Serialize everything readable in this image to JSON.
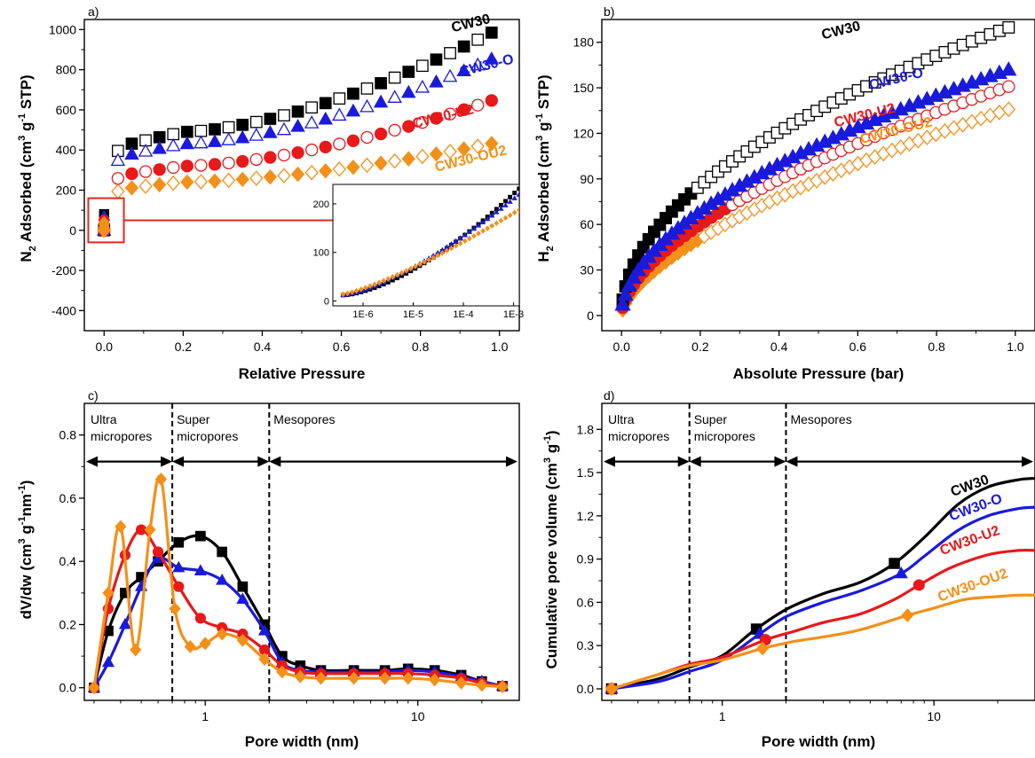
{
  "colors": {
    "CW30": "#000000",
    "CW30-O": "#1a1adc",
    "CW30-U2": "#e8191b",
    "CW30-OU2": "#f39019",
    "arrow": "#e32822"
  },
  "icons": {
    "CW30": "square",
    "CW30-O": "triangle-up",
    "CW30-U2": "circle",
    "CW30-OU2": "diamond"
  },
  "chart_data": [
    {
      "id": "a",
      "panel_label": "a)",
      "type": "scatter",
      "xlabel": "Relative Pressure",
      "ylabel_main": "N",
      "ylabel_sub": "2",
      "ylabel_rest1": " Adsorbed (cm",
      "ylabel_sup1": "3",
      "ylabel_rest2": " g",
      "ylabel_sup2": "-1",
      "ylabel_rest3": " STP)",
      "xlim": [
        -0.05,
        1.05
      ],
      "ylim": [
        -500,
        1050
      ],
      "xticks": [
        0.0,
        0.2,
        0.4,
        0.6,
        0.8,
        1.0
      ],
      "xtick_labels": [
        "0.0",
        "0.2",
        "0.4",
        "0.6",
        "0.8",
        "1.0"
      ],
      "yticks": [
        -400,
        -200,
        0,
        200,
        400,
        600,
        800,
        1000
      ],
      "ytick_labels": [
        "-400",
        "-200",
        "0",
        "200",
        "400",
        "600",
        "800",
        "1000"
      ],
      "series": [
        {
          "name": "CW30",
          "final": 1005,
          "y02": 490
        },
        {
          "name": "CW30-O",
          "final": 870,
          "y02": 430
        },
        {
          "name": "CW30-U2",
          "final": 660,
          "y02": 320
        },
        {
          "name": "CW30-OU2",
          "final": 440,
          "y02": 240
        }
      ],
      "series_labels": [
        "CW30",
        "CW30-O",
        "CW30-U2",
        "CW30-OU2"
      ],
      "inset": {
        "xscale": "log",
        "xlim": [
          2.5e-07,
          0.0013
        ],
        "ylim": [
          -10,
          240
        ],
        "xtick_labels": [
          "1E-6",
          "1E-5",
          "1E-4",
          "1E-3"
        ],
        "yticks": [
          0,
          100,
          200
        ],
        "ytick_labels": [
          "0",
          "100",
          "200"
        ]
      }
    },
    {
      "id": "b",
      "panel_label": "b)",
      "type": "scatter",
      "xlabel": "Absolute Pressure (bar)",
      "ylabel_main": "H",
      "ylabel_sub": "2",
      "ylabel_rest1": " Adsorbed (cm",
      "ylabel_sup1": "3",
      "ylabel_rest2": " g",
      "ylabel_sup2": "-1",
      "ylabel_rest3": " STP)",
      "xlim": [
        -0.05,
        1.05
      ],
      "ylim": [
        -10,
        195
      ],
      "xticks": [
        0.0,
        0.2,
        0.4,
        0.6,
        0.8,
        1.0
      ],
      "xtick_labels": [
        "0.0",
        "0.2",
        "0.4",
        "0.6",
        "0.8",
        "1.0"
      ],
      "yticks": [
        0,
        30,
        60,
        90,
        120,
        150,
        180
      ],
      "ytick_labels": [
        "0",
        "30",
        "60",
        "90",
        "120",
        "150",
        "180"
      ],
      "series": [
        {
          "name": "CW30",
          "final": 190
        },
        {
          "name": "CW30-O",
          "final": 162
        },
        {
          "name": "CW30-U2",
          "final": 151
        },
        {
          "name": "CW30-OU2",
          "final": 136
        }
      ],
      "series_labels": [
        "CW30",
        "CW30-O",
        "CW30-U2",
        "CW30-OU2"
      ]
    },
    {
      "id": "c",
      "panel_label": "c)",
      "type": "line",
      "xscale": "log",
      "xlabel": "Pore width (nm)",
      "ylabel_main": "dV/dw (cm",
      "ylabel_sup1": "3",
      "ylabel_rest2": " g",
      "ylabel_sup2": "-1",
      "ylabel_rest3": "nm",
      "ylabel_sup3": "-1",
      "ylabel_rest4": ")",
      "xlim": [
        0.27,
        30
      ],
      "ylim": [
        -0.04,
        0.9
      ],
      "xticks": [
        1,
        10
      ],
      "xtick_labels": [
        "1",
        "10"
      ],
      "yticks": [
        0.0,
        0.2,
        0.4,
        0.6,
        0.8
      ],
      "ytick_labels": [
        "0.0",
        "0.2",
        "0.4",
        "0.6",
        "0.8"
      ],
      "dividers": [
        0.7,
        2.0
      ],
      "regions": [
        {
          "line1": "Ultra",
          "line2": "micropores"
        },
        {
          "line1": "Super",
          "line2": "micropores"
        },
        {
          "line1": "Mesopores",
          "line2": ""
        }
      ],
      "series": [
        {
          "name": "CW30",
          "x": [
            0.3,
            0.35,
            0.42,
            0.5,
            0.6,
            0.75,
            0.95,
            1.2,
            1.5,
            1.9,
            2.3,
            2.8,
            3.5,
            5,
            7,
            9,
            12,
            16,
            20,
            25
          ],
          "y": [
            0.0,
            0.18,
            0.3,
            0.35,
            0.4,
            0.46,
            0.48,
            0.43,
            0.32,
            0.2,
            0.1,
            0.07,
            0.055,
            0.055,
            0.055,
            0.06,
            0.055,
            0.04,
            0.02,
            0.005
          ]
        },
        {
          "name": "CW30-O",
          "x": [
            0.3,
            0.35,
            0.42,
            0.5,
            0.6,
            0.75,
            0.95,
            1.2,
            1.5,
            1.9,
            2.3,
            2.8,
            3.5,
            5,
            7,
            9,
            12,
            16,
            20,
            25
          ],
          "y": [
            0.0,
            0.08,
            0.2,
            0.32,
            0.41,
            0.38,
            0.37,
            0.34,
            0.28,
            0.18,
            0.08,
            0.055,
            0.05,
            0.05,
            0.05,
            0.055,
            0.05,
            0.035,
            0.02,
            0.005
          ]
        },
        {
          "name": "CW30-U2",
          "x": [
            0.3,
            0.35,
            0.42,
            0.5,
            0.6,
            0.75,
            0.95,
            1.2,
            1.5,
            1.9,
            2.3,
            2.8,
            3.5,
            5,
            7,
            9,
            12,
            16,
            20,
            25
          ],
          "y": [
            0.0,
            0.25,
            0.42,
            0.5,
            0.43,
            0.32,
            0.22,
            0.19,
            0.17,
            0.12,
            0.07,
            0.05,
            0.045,
            0.045,
            0.045,
            0.045,
            0.04,
            0.03,
            0.015,
            0.005
          ]
        },
        {
          "name": "CW30-OU2",
          "x": [
            0.3,
            0.35,
            0.4,
            0.47,
            0.55,
            0.62,
            0.72,
            0.85,
            1.0,
            1.2,
            1.5,
            1.9,
            2.3,
            2.8,
            3.5,
            5,
            7,
            9,
            12,
            16,
            20,
            25
          ],
          "y": [
            0.0,
            0.3,
            0.51,
            0.12,
            0.5,
            0.66,
            0.25,
            0.13,
            0.14,
            0.17,
            0.15,
            0.09,
            0.05,
            0.035,
            0.03,
            0.03,
            0.03,
            0.03,
            0.025,
            0.015,
            0.008,
            0.003
          ]
        }
      ],
      "marker_every": 1
    },
    {
      "id": "d",
      "panel_label": "d)",
      "type": "line",
      "xscale": "log",
      "xlabel": "Pore width (nm)",
      "ylabel_main": "Cumulative pore volume (cm",
      "ylabel_sup1": "3",
      "ylabel_rest2": " g",
      "ylabel_sup2": "-1",
      "ylabel_rest3": ")",
      "xlim": [
        0.27,
        30
      ],
      "ylim": [
        -0.08,
        1.98
      ],
      "xticks": [
        1,
        10
      ],
      "xtick_labels": [
        "1",
        "10"
      ],
      "yticks": [
        0.0,
        0.3,
        0.6,
        0.9,
        1.2,
        1.5,
        1.8
      ],
      "ytick_labels": [
        "0.0",
        "0.3",
        "0.6",
        "0.9",
        "1.2",
        "1.5",
        "1.8"
      ],
      "dividers": [
        0.7,
        2.0
      ],
      "regions": [
        {
          "line1": "Ultra",
          "line2": "micropores"
        },
        {
          "line1": "Super",
          "line2": "micropores"
        },
        {
          "line1": "Mesopores",
          "line2": ""
        }
      ],
      "series": [
        {
          "name": "CW30",
          "x": [
            0.3,
            0.5,
            0.7,
            1.0,
            1.4,
            2.0,
            3.0,
            4.5,
            6.5,
            9,
            13,
            18,
            25,
            30
          ],
          "y": [
            0.0,
            0.07,
            0.15,
            0.23,
            0.4,
            0.55,
            0.66,
            0.74,
            0.87,
            1.05,
            1.28,
            1.4,
            1.45,
            1.46
          ],
          "markers_x": [
            0.3,
            1.45,
            6.5
          ]
        },
        {
          "name": "CW30-O",
          "x": [
            0.3,
            0.5,
            0.7,
            1.0,
            1.5,
            2.0,
            3.0,
            4.5,
            7,
            9,
            13,
            18,
            25,
            30
          ],
          "y": [
            0.0,
            0.05,
            0.12,
            0.2,
            0.38,
            0.5,
            0.6,
            0.68,
            0.8,
            0.92,
            1.1,
            1.2,
            1.25,
            1.26
          ],
          "markers_x": [
            0.3,
            1.5,
            7
          ]
        },
        {
          "name": "CW30-U2",
          "x": [
            0.3,
            0.5,
            0.7,
            1.0,
            1.6,
            2.2,
            3.0,
            4.5,
            6.5,
            8.5,
            12,
            18,
            25,
            30
          ],
          "y": [
            0.0,
            0.1,
            0.17,
            0.22,
            0.34,
            0.4,
            0.46,
            0.52,
            0.62,
            0.72,
            0.84,
            0.93,
            0.96,
            0.96
          ],
          "markers_x": [
            0.3,
            1.6,
            8.5
          ]
        },
        {
          "name": "CW30-OU2",
          "x": [
            0.3,
            0.5,
            0.7,
            1.0,
            1.55,
            2.2,
            3.0,
            4.5,
            7.5,
            10,
            14,
            20,
            25,
            30
          ],
          "y": [
            0.0,
            0.1,
            0.16,
            0.2,
            0.28,
            0.33,
            0.36,
            0.41,
            0.51,
            0.56,
            0.62,
            0.64,
            0.65,
            0.65
          ],
          "markers_x": [
            0.3,
            1.55,
            7.5
          ]
        }
      ],
      "series_labels": [
        "CW30",
        "CW30-O",
        "CW30-U2",
        "CW30-OU2"
      ]
    }
  ]
}
